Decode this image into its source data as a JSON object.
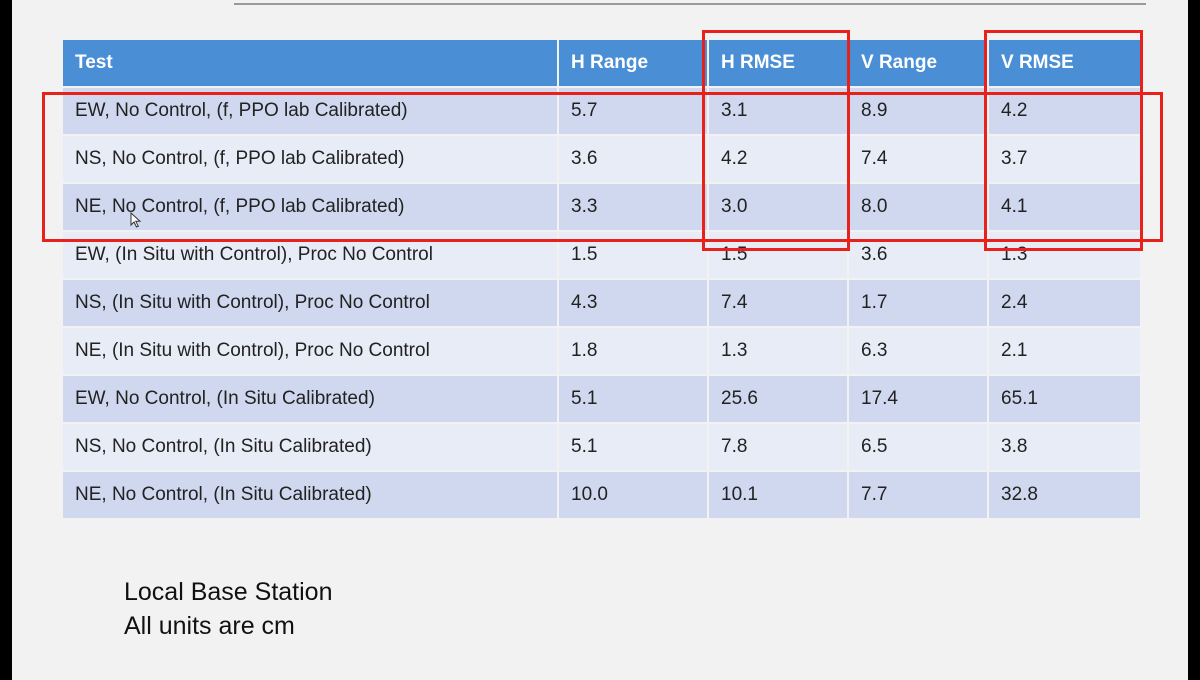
{
  "table": {
    "headers": [
      "Test",
      "H Range",
      "H RMSE",
      "V Range",
      "V RMSE"
    ],
    "rows": [
      [
        "EW, No Control, (f, PPO lab Calibrated)",
        "5.7",
        "3.1",
        "8.9",
        "4.2"
      ],
      [
        "NS, No Control, (f, PPO lab Calibrated)",
        "3.6",
        "4.2",
        "7.4",
        "3.7"
      ],
      [
        "NE, No Control, (f, PPO lab Calibrated)",
        "3.3",
        "3.0",
        "8.0",
        "4.1"
      ],
      [
        "EW, (In Situ with Control), Proc No Control",
        "1.5",
        "1.5",
        "3.6",
        "1.3"
      ],
      [
        "NS, (In Situ with Control), Proc No Control",
        "4.3",
        "7.4",
        "1.7",
        "2.4"
      ],
      [
        "NE, (In Situ with Control), Proc No Control",
        "1.8",
        "1.3",
        "6.3",
        "2.1"
      ],
      [
        "EW, No Control, (In Situ Calibrated)",
        "5.1",
        "25.6",
        "17.4",
        "65.1"
      ],
      [
        "NS, No Control, (In Situ Calibrated)",
        "5.1",
        "7.8",
        "6.5",
        "3.8"
      ],
      [
        "NE, No Control, (In Situ Calibrated)",
        "10.0",
        "10.1",
        "7.7",
        "32.8"
      ]
    ]
  },
  "notes": {
    "line1": "Local Base Station",
    "line2": "All units are cm"
  },
  "colors": {
    "header_bg": "#4a8fd6",
    "row_odd": "#cfd8ef",
    "row_even": "#e8ecf7",
    "highlight": "#e8221b"
  }
}
